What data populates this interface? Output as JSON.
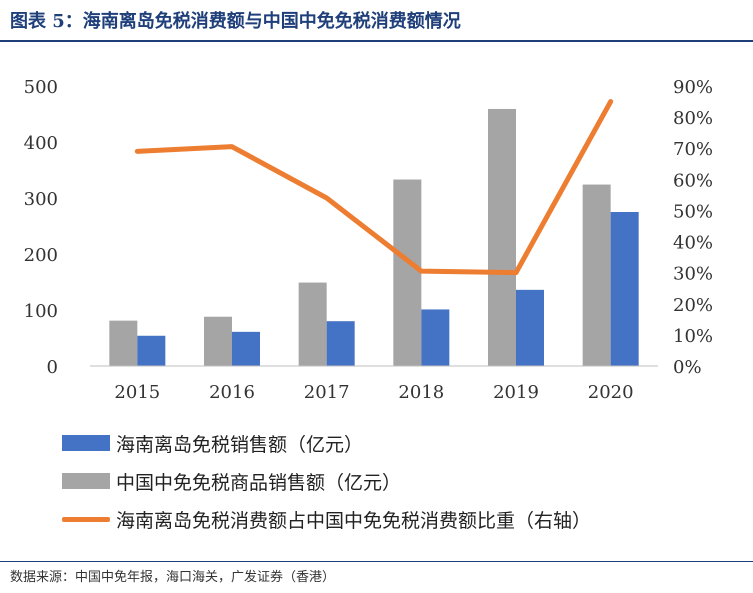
{
  "figure": {
    "title": "图表 5：海南离岛免税消费额与中国中免免税消费额情况",
    "source": "数据来源：中国中免年报，海口海关，广发证券（香港）"
  },
  "colors": {
    "hainan": "#4472c4",
    "cdfg": "#a5a5a5",
    "ratio": "#ed7d31",
    "title": "#1f3f7a"
  },
  "chart_data": {
    "type": "bar",
    "categories": [
      "2015",
      "2016",
      "2017",
      "2018",
      "2019",
      "2020"
    ],
    "series": [
      {
        "name": "中国中免免税商品销售额（亿元）",
        "kind": "bar",
        "axis": "left",
        "values": [
          81,
          88,
          149,
          333,
          459,
          324
        ]
      },
      {
        "name": "海南离岛免税销售额（亿元）",
        "kind": "bar",
        "axis": "left",
        "values": [
          54,
          61,
          80,
          101,
          136,
          275
        ]
      },
      {
        "name": "海南离岛免税消费额占中国中免免税消费额比重（右轴）",
        "kind": "line",
        "axis": "right",
        "values": [
          0.69,
          0.705,
          0.54,
          0.305,
          0.3,
          0.85
        ]
      }
    ],
    "ylim_left": [
      0,
      500
    ],
    "ylim_right": [
      0,
      0.9
    ],
    "left_ticks": [
      "0",
      "100",
      "200",
      "300",
      "400",
      "500"
    ],
    "right_ticks": [
      "0%",
      "10%",
      "20%",
      "30%",
      "40%",
      "50%",
      "60%",
      "70%",
      "80%",
      "90%"
    ],
    "legend": [
      "海南离岛免税销售额（亿元）",
      "中国中免免税商品销售额（亿元）",
      "海南离岛免税消费额占中国中免免税消费额比重（右轴）"
    ],
    "legend_position": "bottom",
    "grid": false
  }
}
